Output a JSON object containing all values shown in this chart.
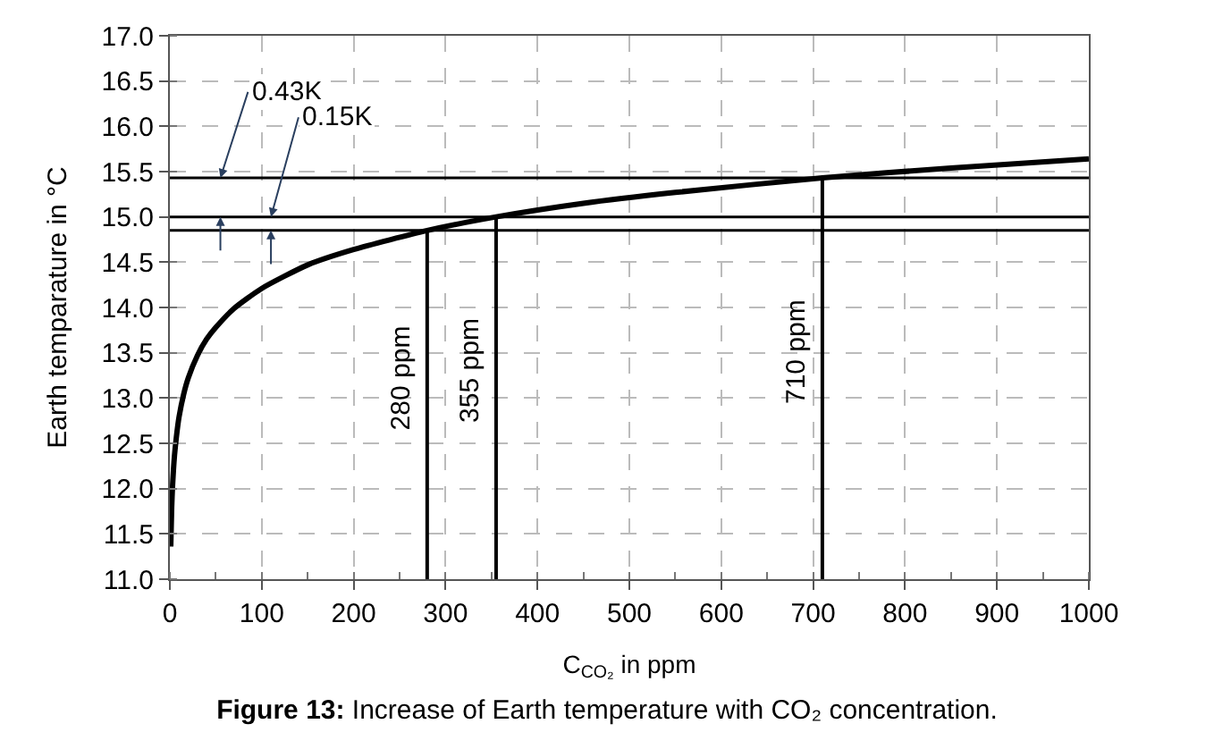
{
  "chart_data": {
    "type": "line",
    "title": "Figure 13: Increase of Earth temperature with CO₂ concentration.",
    "xlabel": "C$_{CO₂}$ in ppm",
    "ylabel": "Earth temparature in °C",
    "x": [
      1,
      2,
      3,
      5,
      7,
      10,
      15,
      20,
      30,
      40,
      50,
      70,
      100,
      150,
      200,
      280,
      355,
      450,
      550,
      710,
      850,
      1000
    ],
    "series": [
      {
        "color": "#000000",
        "values": [
          11.36,
          11.79,
          12.04,
          12.36,
          12.56,
          12.79,
          13.04,
          13.22,
          13.47,
          13.65,
          13.78,
          13.99,
          14.21,
          14.47,
          14.64,
          14.85,
          15.0,
          15.15,
          15.27,
          15.43,
          15.54,
          15.64
        ]
      }
    ],
    "xlim": [
      0,
      1000
    ],
    "xticks": [
      0,
      100,
      200,
      300,
      400,
      500,
      600,
      700,
      800,
      900,
      1000
    ],
    "ylim": [
      11,
      17
    ],
    "yticks": [
      {
        "value": 11,
        "label": "11.0"
      },
      {
        "value": 11.5,
        "label": "11.5"
      },
      {
        "value": 12,
        "label": "12.0"
      },
      {
        "value": 12.5,
        "label": "12.5"
      },
      {
        "value": 13,
        "label": "13.0"
      },
      {
        "value": 13.5,
        "label": "13.5"
      },
      {
        "value": 14,
        "label": "14.0"
      },
      {
        "value": 14.5,
        "label": "14.5"
      },
      {
        "value": 15,
        "label": "15.0"
      },
      {
        "value": 15.5,
        "label": "15.5"
      },
      {
        "value": 16,
        "label": "16.0"
      },
      {
        "value": 16.5,
        "label": "16.5"
      },
      {
        "value": 17,
        "label": "17.0"
      }
    ],
    "ref_lines": [
      {
        "axis": "x",
        "value": 280,
        "label": "280 ppm",
        "color": "#000000"
      },
      {
        "axis": "x",
        "value": 355,
        "label": "355 ppm",
        "color": "#000000"
      },
      {
        "axis": "x",
        "value": 710,
        "label": "710 ppm",
        "color": "#000000"
      },
      {
        "axis": "y",
        "value": 14.85,
        "color": "#000000"
      },
      {
        "axis": "y",
        "value": 15.0,
        "color": "#000000"
      },
      {
        "axis": "y",
        "value": 15.43,
        "color": "#000000"
      }
    ],
    "annotations": [
      {
        "text": "0.43K",
        "x": 55,
        "y": 15.43
      },
      {
        "text": "0.15K",
        "x": 110,
        "y": 15.0
      }
    ],
    "grid": true,
    "line_style": "solid",
    "marker": "none",
    "legend": false
  }
}
